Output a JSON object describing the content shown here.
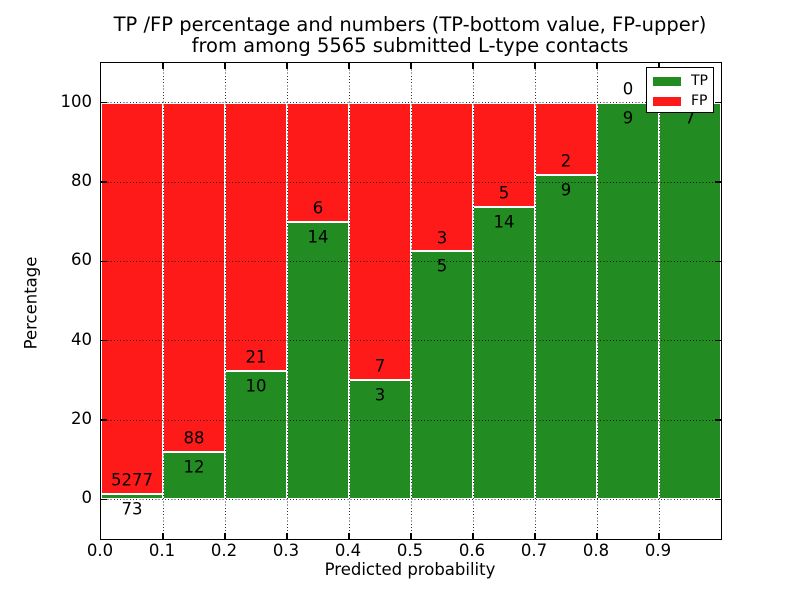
{
  "figure": {
    "title_line1": "TP /FP percentage and numbers (TP-bottom value, FP-upper)",
    "title_line2": "from among 5565 submitted L-type contacts"
  },
  "chart_data": {
    "type": "bar",
    "subtype": "stacked-percentage-histogram",
    "title": "TP /FP percentage and numbers (TP-bottom value, FP-upper) from among 5565 submitted L-type contacts",
    "xlabel": "Predicted probability",
    "ylabel": "Percentage",
    "xlim": [
      0.0,
      1.0
    ],
    "ylim": [
      -10,
      110
    ],
    "x_tick_labels": [
      "0.0",
      "0.1",
      "0.2",
      "0.3",
      "0.4",
      "0.5",
      "0.6",
      "0.7",
      "0.8",
      "0.9"
    ],
    "y_tick_values": [
      0,
      20,
      40,
      60,
      80,
      100
    ],
    "y_tick_labels": [
      "0",
      "20",
      "40",
      "60",
      "80",
      "100"
    ],
    "grid": "dotted-black",
    "bin_edges": [
      0.0,
      0.1,
      0.2,
      0.3,
      0.4,
      0.5,
      0.6,
      0.7,
      0.8,
      0.9,
      1.0
    ],
    "series": [
      {
        "name": "TP",
        "color": "#228B22",
        "counts": [
          73,
          12,
          10,
          14,
          3,
          5,
          14,
          9,
          9,
          7
        ]
      },
      {
        "name": "FP",
        "color": "#ff1a1a",
        "counts": [
          5277,
          88,
          21,
          6,
          7,
          3,
          5,
          2,
          0,
          0
        ]
      }
    ],
    "tp_percent": [
      1.36,
      12.0,
      32.26,
      70.0,
      30.0,
      62.5,
      73.68,
      81.82,
      100.0,
      100.0
    ],
    "total_contacts": 5565,
    "legend": {
      "position": "upper right",
      "entries": [
        "TP",
        "FP"
      ]
    }
  }
}
